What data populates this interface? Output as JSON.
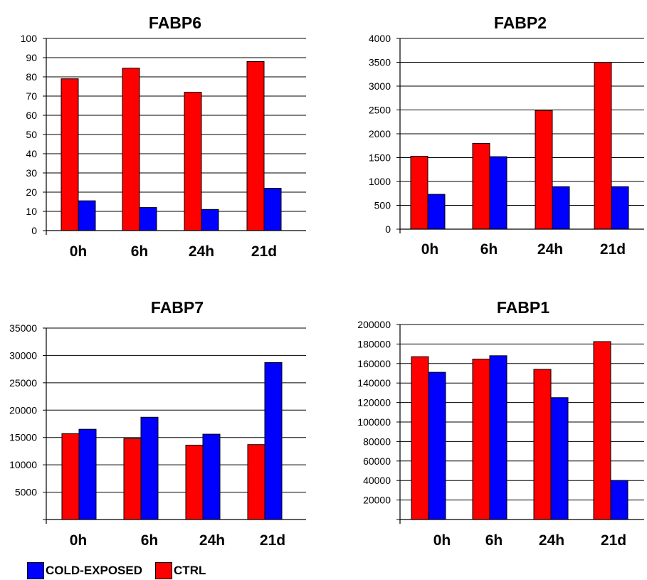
{
  "legend": {
    "cold_label": "COLD-EXPOSED",
    "ctrl_label": "CTRL",
    "cold_color": "#0000ff",
    "ctrl_color": "#ff0000"
  },
  "chart_data": [
    {
      "type": "bar",
      "title": "FABP6",
      "categories": [
        "0h",
        "6h",
        "24h",
        "21d"
      ],
      "ylim": [
        0,
        100
      ],
      "yticks": [
        0,
        10,
        20,
        30,
        40,
        50,
        60,
        70,
        80,
        90,
        100
      ],
      "ytick_labels": [
        "0",
        "10",
        "20",
        "30",
        "40",
        "50",
        "60",
        "70",
        "80",
        "90",
        "100"
      ],
      "grid": true,
      "series": [
        {
          "name": "CTRL",
          "color": "#ff0000",
          "values": [
            79,
            84.5,
            72,
            88
          ]
        },
        {
          "name": "COLD-EXPOSED",
          "color": "#0000ff",
          "values": [
            15.5,
            12,
            11,
            22
          ]
        }
      ]
    },
    {
      "type": "bar",
      "title": "FABP2",
      "categories": [
        "0h",
        "6h",
        "24h",
        "21d"
      ],
      "ylim": [
        0,
        4000
      ],
      "yticks": [
        0,
        500,
        1000,
        1500,
        2000,
        2500,
        3000,
        3500,
        4000
      ],
      "ytick_labels": [
        "0",
        "500",
        "1000",
        "1500",
        "2000",
        "2500",
        "3000",
        "3500",
        "4000"
      ],
      "grid": true,
      "series": [
        {
          "name": "CTRL",
          "color": "#ff0000",
          "values": [
            1530,
            1800,
            2490,
            3500
          ]
        },
        {
          "name": "COLD-EXPOSED",
          "color": "#0000ff",
          "values": [
            730,
            1520,
            890,
            890
          ]
        }
      ]
    },
    {
      "type": "bar",
      "title": "FABP7",
      "categories": [
        "0h",
        "6h",
        "24h",
        "21d"
      ],
      "ylim": [
        0,
        35000
      ],
      "yticks": [
        5000,
        10000,
        15000,
        20000,
        25000,
        30000,
        35000
      ],
      "ytick_labels": [
        "5000",
        "10000",
        "15000",
        "20000",
        "25000",
        "30000",
        "35000"
      ],
      "grid": true,
      "series": [
        {
          "name": "CTRL",
          "color": "#ff0000",
          "values": [
            15700,
            14800,
            13600,
            13700
          ]
        },
        {
          "name": "COLD-EXPOSED",
          "color": "#0000ff",
          "values": [
            16500,
            18700,
            15600,
            28700
          ]
        }
      ]
    },
    {
      "type": "bar",
      "title": "FABP1",
      "categories": [
        "0h",
        "6h",
        "24h",
        "21d"
      ],
      "ylim": [
        0,
        200000
      ],
      "yticks": [
        20000,
        40000,
        60000,
        80000,
        100000,
        120000,
        140000,
        160000,
        180000,
        200000
      ],
      "ytick_labels": [
        "20000",
        "40000",
        "60000",
        "80000",
        "100000",
        "120000",
        "140000",
        "160000",
        "180000",
        "200000"
      ],
      "grid": true,
      "series": [
        {
          "name": "CTRL",
          "color": "#ff0000",
          "values": [
            167000,
            164500,
            154000,
            182500
          ]
        },
        {
          "name": "COLD-EXPOSED",
          "color": "#0000ff",
          "values": [
            151000,
            168000,
            125000,
            40000
          ]
        }
      ]
    }
  ]
}
